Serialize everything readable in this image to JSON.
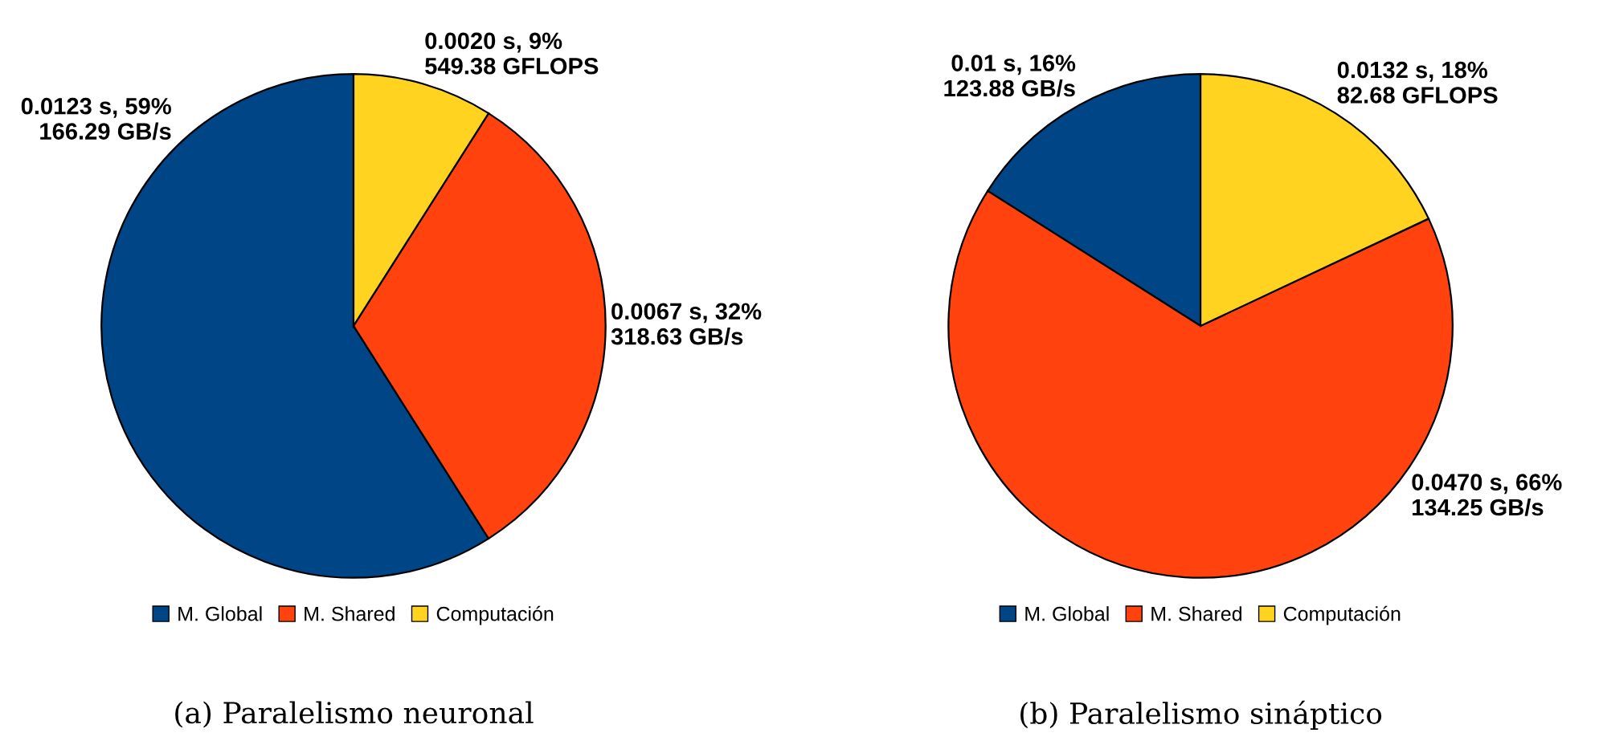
{
  "chart_data": [
    {
      "type": "pie",
      "title": "(a) Paralelismo neuronal",
      "categories": [
        "M. Global",
        "M. Shared",
        "Computación"
      ],
      "values": [
        59,
        32,
        9
      ],
      "colors": [
        "#004586",
        "#ff420e",
        "#ffd320"
      ],
      "value_labels": [
        "0.0123 s, 59%\n166.29 GB/s",
        "0.0067 s, 32%\n318.63 GB/s",
        "0.0020 s, 9%\n549.38 GFLOPS"
      ],
      "legend": "bottom"
    },
    {
      "type": "pie",
      "title": "(b) Paralelismo sináptico",
      "categories": [
        "M. Global",
        "M. Shared",
        "Computación"
      ],
      "values": [
        16,
        66,
        18
      ],
      "colors": [
        "#004586",
        "#ff420e",
        "#ffd320"
      ],
      "value_labels": [
        "0.01 s, 16%\n123.88 GB/s",
        "0.0470 s, 66%\n134.25 GB/s",
        "0.0132 s, 18%\n82.68 GFLOPS"
      ],
      "legend": "bottom"
    }
  ]
}
